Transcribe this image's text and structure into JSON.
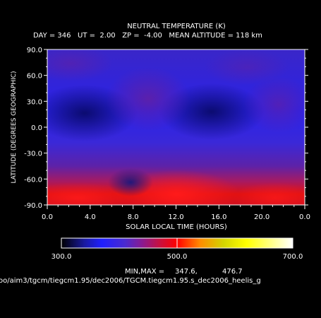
{
  "chart_data": {
    "type": "heatmap",
    "title": "NEUTRAL TEMPERATURE (K)",
    "subtitle": "DAY = 346   UT =  2.00   ZP =  -4.00   MEAN ALTITUDE = 118 km",
    "xlabel": "SOLAR LOCAL TIME (HOURS)",
    "ylabel": "LATITUDE (DEGREES GEOGRAPHIC)",
    "x_ticks": [
      "0.0",
      "4.0",
      "8.0",
      "12.0",
      "16.0",
      "20.0",
      "0.0"
    ],
    "y_ticks": [
      "-90.0",
      "-60.0",
      "-30.0",
      "0.0",
      "30.0",
      "60.0",
      "90.0"
    ],
    "xlim": [
      0,
      24
    ],
    "ylim": [
      -90,
      90
    ],
    "colorbar": {
      "ticks": [
        "300.0",
        "500.0",
        "700.0"
      ],
      "range": [
        300,
        700
      ],
      "stops": [
        {
          "v": 300,
          "color": "#000000"
        },
        {
          "v": 340,
          "color": "#1a1aa0"
        },
        {
          "v": 370,
          "color": "#1f1fff"
        },
        {
          "v": 410,
          "color": "#4a2ad0"
        },
        {
          "v": 440,
          "color": "#8a1a90"
        },
        {
          "v": 470,
          "color": "#c81040"
        },
        {
          "v": 500,
          "color": "#ff0000"
        },
        {
          "v": 540,
          "color": "#ff8c00"
        },
        {
          "v": 580,
          "color": "#d4d400"
        },
        {
          "v": 620,
          "color": "#ffff00"
        },
        {
          "v": 700,
          "color": "#ffffff"
        }
      ]
    },
    "min_label": "MIN,MAX =",
    "min": "347.6,",
    "max": "476.7",
    "field_sample_K": [
      {
        "lt": 0,
        "lat": 90,
        "value": 375
      },
      {
        "lt": 4,
        "lat": 10,
        "value": 352
      },
      {
        "lt": 16,
        "lat": 10,
        "value": 355
      },
      {
        "lt": 12,
        "lat": -75,
        "value": 476
      },
      {
        "lt": 4,
        "lat": -80,
        "value": 470
      },
      {
        "lt": 8,
        "lat": -60,
        "value": 372
      }
    ]
  },
  "file_path": "oo/aim3/tgcm/tiegcm1.95/dec2006/TGCM.tiegcm1.95.s_dec2006_heelis_g"
}
